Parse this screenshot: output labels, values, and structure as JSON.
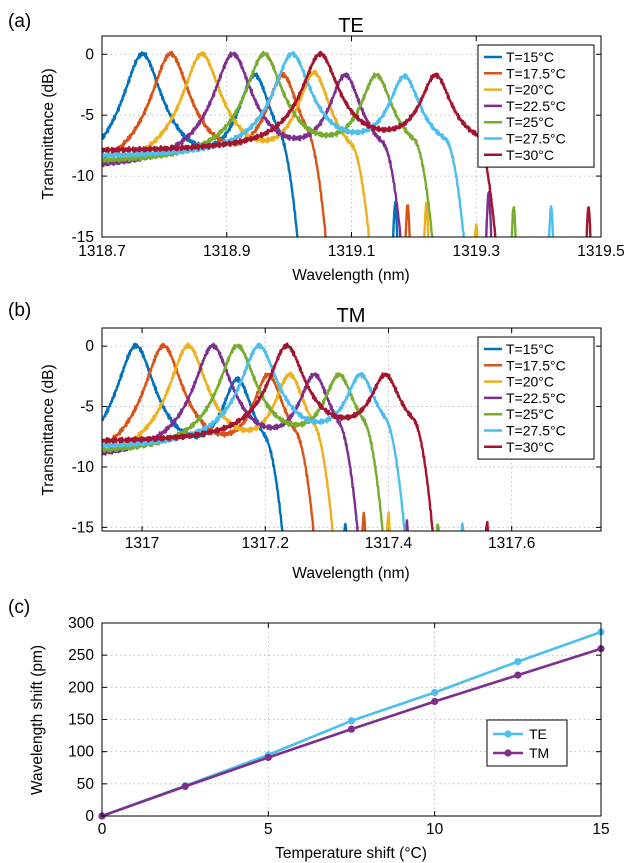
{
  "panels": [
    {
      "letter": "(a)",
      "title": "TE",
      "xlabel": "Wavelength (nm)",
      "ylabel": "Transmittance (dB)",
      "xlim": [
        1318.7,
        1319.5
      ],
      "ylim": [
        -15,
        1.5
      ],
      "xticks": [
        "1318.7",
        "1318.9",
        "1319.1",
        "1319.3",
        "1319.5"
      ],
      "yticks": [
        "0",
        "-5",
        "-10",
        "-15"
      ]
    },
    {
      "letter": "(b)",
      "title": "TM",
      "xlabel": "Wavelength (nm)",
      "ylabel": "Transmittance (dB)",
      "xlim": [
        1316.935,
        1317.745
      ],
      "ylim": [
        -15.3,
        1.5
      ],
      "xticks": [
        "1317",
        "1317.2",
        "1317.4",
        "1317.6"
      ],
      "yticks": [
        "0",
        "-5",
        "-10",
        "-15"
      ]
    },
    {
      "letter": "(c)",
      "title": "",
      "xlabel": "Temperature shift (°C)",
      "ylabel": "Wavelength shift (pm)",
      "xlim": [
        0,
        15
      ],
      "ylim": [
        0,
        300
      ],
      "xticks": [
        "0",
        "5",
        "10",
        "15"
      ],
      "yticks": [
        "0",
        "50",
        "100",
        "150",
        "200",
        "250",
        "300"
      ]
    }
  ],
  "chart_data": [
    {
      "type": "line",
      "title": "TE",
      "xlabel": "Wavelength (nm)",
      "ylabel": "Transmittance (dB)",
      "xlim": [
        1318.7,
        1319.5
      ],
      "ylim": [
        -15,
        1.5
      ],
      "grid": true,
      "legend_position": "top-right",
      "peak_fwhm_nm": 0.05,
      "series": [
        {
          "name": "T=15°C",
          "color": "#0072bd",
          "peak1_x": 1318.765,
          "peak1_y": 0,
          "peak2_x": 1318.945,
          "peak2_y": -1.8,
          "baseline": -11.0,
          "drop_x": 1318.985,
          "comb_x": [
            1319.17
          ],
          "comb_y": [
            -12.3
          ]
        },
        {
          "name": "T=17.5°C",
          "color": "#d95319",
          "peak1_x": 1318.81,
          "peak1_y": 0,
          "peak2_x": 1318.99,
          "peak2_y": -1.8,
          "baseline": -10.5,
          "drop_x": 1319.03,
          "comb_x": [
            1319.19
          ],
          "comb_y": [
            -12.3
          ]
        },
        {
          "name": "T=20°C",
          "color": "#edb120",
          "peak1_x": 1318.86,
          "peak1_y": 0,
          "peak2_x": 1319.04,
          "peak2_y": -1.6,
          "baseline": -10.0,
          "drop_x": 1319.1,
          "comb_x": [
            1319.22,
            1319.3
          ],
          "comb_y": [
            -12.3,
            -14.0
          ]
        },
        {
          "name": "T=22.5°C",
          "color": "#7e2f8e",
          "peak1_x": 1318.91,
          "peak1_y": 0,
          "peak2_x": 1319.09,
          "peak2_y": -1.8,
          "baseline": -9.5,
          "drop_x": 1319.15,
          "comb_x": [
            1319.32
          ],
          "comb_y": [
            -11.3
          ]
        },
        {
          "name": "T=25°C",
          "color": "#77ac30",
          "peak1_x": 1318.96,
          "peak1_y": 0,
          "peak2_x": 1319.14,
          "peak2_y": -1.8,
          "baseline": -9.0,
          "drop_x": 1319.2,
          "comb_x": [
            1319.36
          ],
          "comb_y": [
            -12.5
          ]
        },
        {
          "name": "T=27.5°C",
          "color": "#4dbeee",
          "peak1_x": 1319.005,
          "peak1_y": 0,
          "peak2_x": 1319.185,
          "peak2_y": -1.9,
          "baseline": -8.5,
          "drop_x": 1319.25,
          "comb_x": [
            1319.42
          ],
          "comb_y": [
            -12.5
          ]
        },
        {
          "name": "T=30°C",
          "color": "#a2142f",
          "peak1_x": 1319.05,
          "peak1_y": 0,
          "peak2_x": 1319.235,
          "peak2_y": -1.8,
          "baseline": -8.0,
          "drop_x": 1319.3,
          "comb_x": [
            1319.48
          ],
          "comb_y": [
            -12.5
          ]
        }
      ]
    },
    {
      "type": "line",
      "title": "TM",
      "xlabel": "Wavelength (nm)",
      "ylabel": "Transmittance (dB)",
      "xlim": [
        1316.935,
        1317.745
      ],
      "ylim": [
        -15.3,
        1.5
      ],
      "grid": true,
      "legend_position": "top-right",
      "peak_fwhm_nm": 0.05,
      "series": [
        {
          "name": "T=15°C",
          "color": "#0072bd",
          "peak1_x": 1316.99,
          "peak1_y": 0,
          "peak2_x": 1317.155,
          "peak2_y": -2.9,
          "baseline": -11.0,
          "drop_x": 1317.2,
          "comb_x": [
            1317.33
          ],
          "comb_y": [
            -14.7
          ]
        },
        {
          "name": "T=17.5°C",
          "color": "#d95319",
          "peak1_x": 1317.035,
          "peak1_y": 0,
          "peak2_x": 1317.205,
          "peak2_y": -2.5,
          "baseline": -10.5,
          "drop_x": 1317.25,
          "comb_x": [
            1317.36
          ],
          "comb_y": [
            -13.9
          ]
        },
        {
          "name": "T=20°C",
          "color": "#edb120",
          "peak1_x": 1317.075,
          "peak1_y": 0,
          "peak2_x": 1317.24,
          "peak2_y": -2.5,
          "baseline": -10.0,
          "drop_x": 1317.28,
          "comb_x": [
            1317.4
          ],
          "comb_y": [
            -13.9
          ]
        },
        {
          "name": "T=22.5°C",
          "color": "#7e2f8e",
          "peak1_x": 1317.115,
          "peak1_y": 0,
          "peak2_x": 1317.28,
          "peak2_y": -2.5,
          "baseline": -9.5,
          "drop_x": 1317.32,
          "comb_x": [
            1317.43
          ],
          "comb_y": [
            -14.6
          ]
        },
        {
          "name": "T=25°C",
          "color": "#77ac30",
          "peak1_x": 1317.155,
          "peak1_y": 0,
          "peak2_x": 1317.32,
          "peak2_y": -2.5,
          "baseline": -9.0,
          "drop_x": 1317.36,
          "comb_x": [
            1317.48
          ],
          "comb_y": [
            -14.7
          ]
        },
        {
          "name": "T=27.5°C",
          "color": "#4dbeee",
          "peak1_x": 1317.19,
          "peak1_y": 0,
          "peak2_x": 1317.355,
          "peak2_y": -2.5,
          "baseline": -8.5,
          "drop_x": 1317.395,
          "comb_x": [
            1317.52
          ],
          "comb_y": [
            -14.7
          ]
        },
        {
          "name": "T=30°C",
          "color": "#a2142f",
          "peak1_x": 1317.235,
          "peak1_y": 0,
          "peak2_x": 1317.395,
          "peak2_y": -2.5,
          "baseline": -8.0,
          "drop_x": 1317.44,
          "comb_x": [
            1317.56
          ],
          "comb_y": [
            -14.6
          ]
        }
      ]
    },
    {
      "type": "line",
      "title": "",
      "xlabel": "Temperature shift (°C)",
      "ylabel": "Wavelength shift (pm)",
      "xlim": [
        0,
        15
      ],
      "ylim": [
        0,
        300
      ],
      "grid": true,
      "legend_position": "lower-right",
      "x": [
        0,
        2.5,
        5,
        7.5,
        10,
        12.5,
        15
      ],
      "series": [
        {
          "name": "TE",
          "color": "#4dbeee",
          "values": [
            0,
            47,
            95,
            148,
            192,
            240,
            286
          ]
        },
        {
          "name": "TM",
          "color": "#7e2f8e",
          "values": [
            0,
            46,
            91,
            135,
            178,
            219,
            260
          ]
        }
      ]
    }
  ]
}
